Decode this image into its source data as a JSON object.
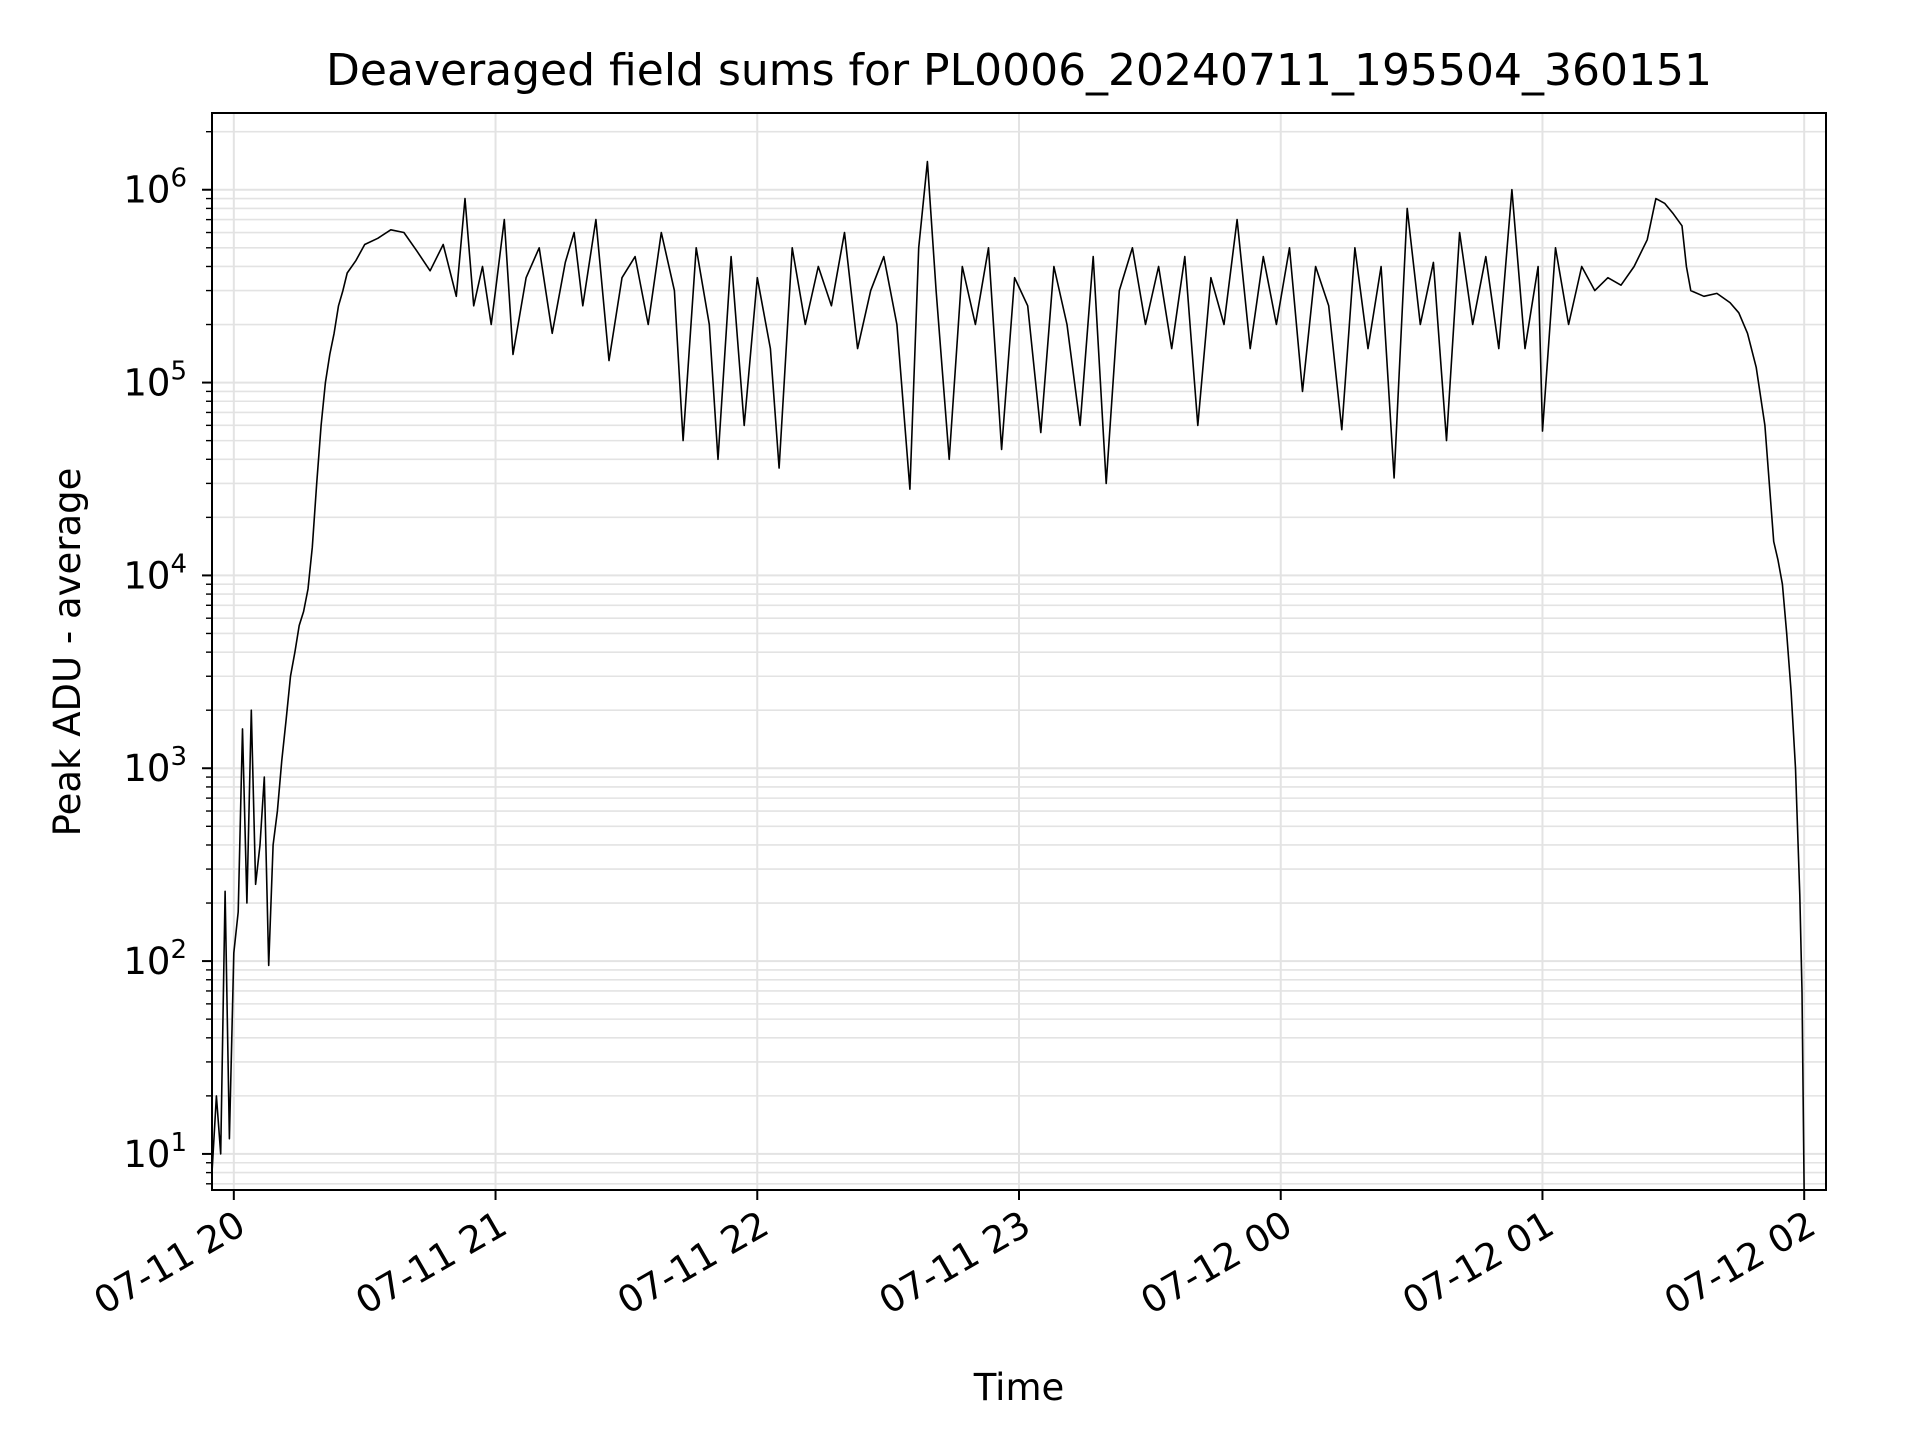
{
  "chart_data": {
    "type": "line",
    "title": "Deaveraged field sums for PL0006_20240711_195504_360151",
    "xlabel": "Time",
    "ylabel": "Peak ADU - average",
    "x_ticks": [
      "07-11 20",
      "07-11 21",
      "07-11 22",
      "07-11 23",
      "07-12 00",
      "07-12 01",
      "07-12 02"
    ],
    "y_ticks": [
      {
        "value": 10,
        "base": "10",
        "exp": "1"
      },
      {
        "value": 100,
        "base": "10",
        "exp": "2"
      },
      {
        "value": 1000,
        "base": "10",
        "exp": "3"
      },
      {
        "value": 10000,
        "base": "10",
        "exp": "4"
      },
      {
        "value": 100000,
        "base": "10",
        "exp": "5"
      },
      {
        "value": 1000000,
        "base": "10",
        "exp": "6"
      }
    ],
    "xlim": [
      "2024-07-11 19:55",
      "2024-07-12 02:05"
    ],
    "ylim": [
      6.5,
      2500000
    ],
    "yscale": "log",
    "grid": true,
    "color": "#000000",
    "series": [
      {
        "values": [
          [
            "2024-07-11 19:55",
            8
          ],
          [
            "2024-07-11 19:56",
            20
          ],
          [
            "2024-07-11 19:57",
            10
          ],
          [
            "2024-07-11 19:58",
            230
          ],
          [
            "2024-07-11 19:59",
            12
          ],
          [
            "2024-07-11 20:00",
            110
          ],
          [
            "2024-07-11 20:01",
            180
          ],
          [
            "2024-07-11 20:02",
            1600
          ],
          [
            "2024-07-11 20:03",
            200
          ],
          [
            "2024-07-11 20:04",
            2000
          ],
          [
            "2024-07-11 20:05",
            250
          ],
          [
            "2024-07-11 20:06",
            400
          ],
          [
            "2024-07-11 20:07",
            900
          ],
          [
            "2024-07-11 20:08",
            95
          ],
          [
            "2024-07-11 20:09",
            400
          ],
          [
            "2024-07-11 20:10",
            600
          ],
          [
            "2024-07-11 20:11",
            1100
          ],
          [
            "2024-07-11 20:12",
            1800
          ],
          [
            "2024-07-11 20:13",
            3000
          ],
          [
            "2024-07-11 20:14",
            4000
          ],
          [
            "2024-07-11 20:15",
            5500
          ],
          [
            "2024-07-11 20:16",
            6500
          ],
          [
            "2024-07-11 20:17",
            8500
          ],
          [
            "2024-07-11 20:18",
            14000
          ],
          [
            "2024-07-11 20:19",
            30000
          ],
          [
            "2024-07-11 20:20",
            60000
          ],
          [
            "2024-07-11 20:21",
            100000
          ],
          [
            "2024-07-11 20:22",
            140000
          ],
          [
            "2024-07-11 20:23",
            180000
          ],
          [
            "2024-07-11 20:24",
            250000
          ],
          [
            "2024-07-11 20:25",
            300000
          ],
          [
            "2024-07-11 20:26",
            370000
          ],
          [
            "2024-07-11 20:28",
            430000
          ],
          [
            "2024-07-11 20:30",
            520000
          ],
          [
            "2024-07-11 20:33",
            560000
          ],
          [
            "2024-07-11 20:36",
            620000
          ],
          [
            "2024-07-11 20:39",
            600000
          ],
          [
            "2024-07-11 20:42",
            480000
          ],
          [
            "2024-07-11 20:45",
            380000
          ],
          [
            "2024-07-11 20:48",
            520000
          ],
          [
            "2024-07-11 20:51",
            280000
          ],
          [
            "2024-07-11 20:53",
            900000
          ],
          [
            "2024-07-11 20:55",
            250000
          ],
          [
            "2024-07-11 20:57",
            400000
          ],
          [
            "2024-07-11 20:59",
            200000
          ],
          [
            "2024-07-11 21:00",
            300000
          ],
          [
            "2024-07-11 21:02",
            700000
          ],
          [
            "2024-07-11 21:04",
            140000
          ],
          [
            "2024-07-11 21:07",
            350000
          ],
          [
            "2024-07-11 21:10",
            500000
          ],
          [
            "2024-07-11 21:13",
            180000
          ],
          [
            "2024-07-11 21:16",
            420000
          ],
          [
            "2024-07-11 21:18",
            600000
          ],
          [
            "2024-07-11 21:20",
            250000
          ],
          [
            "2024-07-11 21:23",
            700000
          ],
          [
            "2024-07-11 21:26",
            130000
          ],
          [
            "2024-07-11 21:29",
            350000
          ],
          [
            "2024-07-11 21:32",
            450000
          ],
          [
            "2024-07-11 21:35",
            200000
          ],
          [
            "2024-07-11 21:38",
            600000
          ],
          [
            "2024-07-11 21:41",
            300000
          ],
          [
            "2024-07-11 21:43",
            50000
          ],
          [
            "2024-07-11 21:46",
            500000
          ],
          [
            "2024-07-11 21:49",
            200000
          ],
          [
            "2024-07-11 21:51",
            40000
          ],
          [
            "2024-07-11 21:54",
            450000
          ],
          [
            "2024-07-11 21:57",
            60000
          ],
          [
            "2024-07-11 22:00",
            350000
          ],
          [
            "2024-07-11 22:03",
            150000
          ],
          [
            "2024-07-11 22:05",
            36000
          ],
          [
            "2024-07-11 22:08",
            500000
          ],
          [
            "2024-07-11 22:11",
            200000
          ],
          [
            "2024-07-11 22:14",
            400000
          ],
          [
            "2024-07-11 22:17",
            250000
          ],
          [
            "2024-07-11 22:20",
            600000
          ],
          [
            "2024-07-11 22:23",
            150000
          ],
          [
            "2024-07-11 22:26",
            300000
          ],
          [
            "2024-07-11 22:29",
            450000
          ],
          [
            "2024-07-11 22:32",
            200000
          ],
          [
            "2024-07-11 22:35",
            28000
          ],
          [
            "2024-07-11 22:37",
            500000
          ],
          [
            "2024-07-11 22:39",
            1400000
          ],
          [
            "2024-07-11 22:41",
            300000
          ],
          [
            "2024-07-11 22:44",
            40000
          ],
          [
            "2024-07-11 22:47",
            400000
          ],
          [
            "2024-07-11 22:50",
            200000
          ],
          [
            "2024-07-11 22:53",
            500000
          ],
          [
            "2024-07-11 22:56",
            45000
          ],
          [
            "2024-07-11 22:59",
            350000
          ],
          [
            "2024-07-11 23:02",
            250000
          ],
          [
            "2024-07-11 23:05",
            55000
          ],
          [
            "2024-07-11 23:08",
            400000
          ],
          [
            "2024-07-11 23:11",
            200000
          ],
          [
            "2024-07-11 23:14",
            60000
          ],
          [
            "2024-07-11 23:17",
            450000
          ],
          [
            "2024-07-11 23:20",
            30000
          ],
          [
            "2024-07-11 23:23",
            300000
          ],
          [
            "2024-07-11 23:26",
            500000
          ],
          [
            "2024-07-11 23:29",
            200000
          ],
          [
            "2024-07-11 23:32",
            400000
          ],
          [
            "2024-07-11 23:35",
            150000
          ],
          [
            "2024-07-11 23:38",
            450000
          ],
          [
            "2024-07-11 23:41",
            60000
          ],
          [
            "2024-07-11 23:44",
            350000
          ],
          [
            "2024-07-11 23:47",
            200000
          ],
          [
            "2024-07-11 23:50",
            700000
          ],
          [
            "2024-07-11 23:53",
            150000
          ],
          [
            "2024-07-11 23:56",
            450000
          ],
          [
            "2024-07-11 23:59",
            200000
          ],
          [
            "2024-07-12 00:02",
            500000
          ],
          [
            "2024-07-12 00:05",
            90000
          ],
          [
            "2024-07-12 00:08",
            400000
          ],
          [
            "2024-07-12 00:11",
            250000
          ],
          [
            "2024-07-12 00:14",
            57000
          ],
          [
            "2024-07-12 00:17",
            500000
          ],
          [
            "2024-07-12 00:20",
            150000
          ],
          [
            "2024-07-12 00:23",
            400000
          ],
          [
            "2024-07-12 00:26",
            32000
          ],
          [
            "2024-07-12 00:29",
            800000
          ],
          [
            "2024-07-12 00:32",
            200000
          ],
          [
            "2024-07-12 00:35",
            420000
          ],
          [
            "2024-07-12 00:38",
            50000
          ],
          [
            "2024-07-12 00:41",
            600000
          ],
          [
            "2024-07-12 00:44",
            200000
          ],
          [
            "2024-07-12 00:47",
            450000
          ],
          [
            "2024-07-12 00:50",
            150000
          ],
          [
            "2024-07-12 00:53",
            1000000
          ],
          [
            "2024-07-12 00:56",
            150000
          ],
          [
            "2024-07-12 00:59",
            400000
          ],
          [
            "2024-07-12 01:00",
            56000
          ],
          [
            "2024-07-12 01:03",
            500000
          ],
          [
            "2024-07-12 01:06",
            200000
          ],
          [
            "2024-07-12 01:09",
            400000
          ],
          [
            "2024-07-12 01:12",
            300000
          ],
          [
            "2024-07-12 01:15",
            350000
          ],
          [
            "2024-07-12 01:18",
            320000
          ],
          [
            "2024-07-12 01:21",
            400000
          ],
          [
            "2024-07-12 01:24",
            550000
          ],
          [
            "2024-07-12 01:26",
            900000
          ],
          [
            "2024-07-12 01:28",
            850000
          ],
          [
            "2024-07-12 01:30",
            750000
          ],
          [
            "2024-07-12 01:32",
            650000
          ],
          [
            "2024-07-12 01:33",
            400000
          ],
          [
            "2024-07-12 01:34",
            300000
          ],
          [
            "2024-07-12 01:37",
            280000
          ],
          [
            "2024-07-12 01:40",
            290000
          ],
          [
            "2024-07-12 01:43",
            260000
          ],
          [
            "2024-07-12 01:45",
            230000
          ],
          [
            "2024-07-12 01:47",
            180000
          ],
          [
            "2024-07-12 01:49",
            120000
          ],
          [
            "2024-07-12 01:51",
            60000
          ],
          [
            "2024-07-12 01:52",
            30000
          ],
          [
            "2024-07-12 01:53",
            15000
          ],
          [
            "2024-07-12 01:54",
            12000
          ],
          [
            "2024-07-12 01:55",
            9000
          ],
          [
            "2024-07-12 01:56",
            5000
          ],
          [
            "2024-07-12 01:57",
            2500
          ],
          [
            "2024-07-12 01:58",
            1000
          ],
          [
            "2024-07-12 01:59",
            220
          ],
          [
            "2024-07-12 01:59:30",
            70
          ],
          [
            "2024-07-12 02:00",
            6
          ]
        ]
      }
    ]
  }
}
